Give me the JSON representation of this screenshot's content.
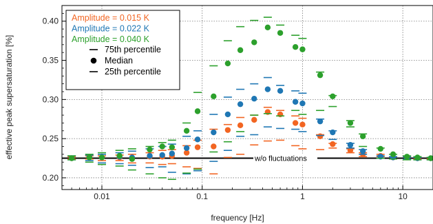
{
  "chart_data": {
    "type": "scatter",
    "xlabel": "frequency [Hz]",
    "ylabel": "effective peak supersaturation [%]",
    "x_scale": "log",
    "xlim": [
      0.004,
      20
    ],
    "ylim": [
      0.185,
      0.42
    ],
    "x_ticks": [
      {
        "value": 0.01,
        "label": "0.01"
      },
      {
        "value": 0.1,
        "label": "0.1"
      },
      {
        "value": 1,
        "label": "1"
      },
      {
        "value": 10,
        "label": "10"
      }
    ],
    "y_ticks": [
      {
        "value": 0.2,
        "label": "0.20"
      },
      {
        "value": 0.25,
        "label": "0.25"
      },
      {
        "value": 0.3,
        "label": "0.30"
      },
      {
        "value": 0.35,
        "label": "0.35"
      },
      {
        "value": 0.4,
        "label": "0.40"
      }
    ],
    "grid": true,
    "legend_position": "top-left",
    "reference_line": {
      "label": "w/o fluctuations",
      "y": 0.225,
      "color": "#000000"
    },
    "legend": {
      "series_labels": [
        "Amplitude = 0.015 K",
        "Amplitude = 0.022 K",
        "Amplitude = 0.040 K"
      ],
      "marker_labels": [
        "75th percentile",
        "Median",
        "25th percentile"
      ]
    },
    "series": [
      {
        "name": "Amplitude = 0.015 K",
        "color": "#f26522",
        "x": [
          0.005,
          0.0075,
          0.01,
          0.015,
          0.02,
          0.03,
          0.04,
          0.05,
          0.07,
          0.09,
          0.13,
          0.18,
          0.24,
          0.33,
          0.45,
          0.6,
          0.85,
          1.0,
          1.5,
          2.0,
          3.0,
          4.0,
          6.0,
          8.0,
          11.0,
          14.0,
          19.0
        ],
        "median": [
          0.225,
          0.226,
          0.226,
          0.226,
          0.225,
          0.227,
          0.227,
          0.228,
          0.232,
          0.239,
          0.24,
          0.261,
          0.267,
          0.274,
          0.284,
          0.281,
          0.27,
          0.268,
          0.253,
          0.243,
          0.235,
          0.23,
          0.228,
          0.226,
          0.226,
          0.225,
          0.225
        ],
        "p75": [
          0.227,
          0.228,
          0.228,
          0.229,
          0.23,
          0.232,
          0.235,
          0.236,
          0.241,
          0.248,
          0.262,
          0.268,
          0.277,
          0.28,
          0.29,
          0.286,
          0.279,
          0.276,
          0.255,
          0.244,
          0.237,
          0.232,
          0.23,
          0.227,
          0.227,
          0.226,
          0.226
        ],
        "p25": [
          0.224,
          0.224,
          0.222,
          0.222,
          0.219,
          0.219,
          0.217,
          0.218,
          0.214,
          0.212,
          0.205,
          0.226,
          0.23,
          0.242,
          0.247,
          0.248,
          0.241,
          0.237,
          0.236,
          0.238,
          0.232,
          0.227,
          0.227,
          0.224,
          0.224,
          0.224,
          0.224
        ]
      },
      {
        "name": "Amplitude = 0.022 K",
        "color": "#1f77b4",
        "x": [
          0.005,
          0.0075,
          0.01,
          0.015,
          0.02,
          0.03,
          0.04,
          0.05,
          0.07,
          0.09,
          0.13,
          0.18,
          0.24,
          0.33,
          0.45,
          0.6,
          0.85,
          1.0,
          1.5,
          2.0,
          3.0,
          4.0,
          6.0,
          8.0,
          11.0,
          14.0,
          19.0
        ],
        "median": [
          0.225,
          0.226,
          0.226,
          0.227,
          0.226,
          0.228,
          0.229,
          0.231,
          0.238,
          0.249,
          0.258,
          0.281,
          0.294,
          0.301,
          0.313,
          0.311,
          0.297,
          0.295,
          0.272,
          0.258,
          0.242,
          0.234,
          0.227,
          0.226,
          0.226,
          0.225,
          0.225
        ],
        "p75": [
          0.228,
          0.229,
          0.23,
          0.232,
          0.234,
          0.237,
          0.24,
          0.243,
          0.253,
          0.26,
          0.281,
          0.303,
          0.313,
          0.32,
          0.328,
          0.318,
          0.311,
          0.308,
          0.275,
          0.26,
          0.244,
          0.236,
          0.228,
          0.227,
          0.227,
          0.226,
          0.226
        ],
        "p25": [
          0.223,
          0.222,
          0.219,
          0.218,
          0.216,
          0.213,
          0.214,
          0.207,
          0.205,
          0.209,
          0.221,
          0.235,
          0.253,
          0.255,
          0.265,
          0.263,
          0.262,
          0.259,
          0.254,
          0.249,
          0.238,
          0.23,
          0.225,
          0.224,
          0.224,
          0.223,
          0.223
        ]
      },
      {
        "name": "Amplitude = 0.040 K",
        "color": "#2ca02c",
        "x": [
          0.005,
          0.0075,
          0.01,
          0.015,
          0.02,
          0.03,
          0.04,
          0.05,
          0.07,
          0.09,
          0.13,
          0.18,
          0.24,
          0.33,
          0.45,
          0.6,
          0.85,
          1.0,
          1.5,
          2.0,
          3.0,
          4.0,
          6.0,
          8.0,
          11.0,
          14.0,
          19.0
        ],
        "median": [
          0.225,
          0.226,
          0.226,
          0.228,
          0.224,
          0.236,
          0.24,
          0.239,
          0.26,
          0.285,
          0.304,
          0.346,
          0.363,
          0.373,
          0.392,
          0.385,
          0.367,
          0.364,
          0.331,
          0.304,
          0.27,
          0.253,
          0.237,
          0.23,
          0.227,
          0.226,
          0.225
        ],
        "p75": [
          0.228,
          0.23,
          0.232,
          0.235,
          0.237,
          0.24,
          0.245,
          0.248,
          0.27,
          0.309,
          0.343,
          0.375,
          0.393,
          0.401,
          0.405,
          0.395,
          0.382,
          0.378,
          0.335,
          0.305,
          0.273,
          0.256,
          0.238,
          0.23,
          0.228,
          0.227,
          0.226
        ],
        "p25": [
          0.223,
          0.22,
          0.217,
          0.215,
          0.21,
          0.205,
          0.2,
          0.198,
          0.206,
          0.211,
          0.233,
          0.246,
          0.259,
          0.28,
          0.282,
          0.279,
          0.286,
          0.281,
          0.286,
          0.291,
          0.265,
          0.24,
          0.225,
          0.224,
          0.223,
          0.223,
          0.223
        ]
      }
    ]
  }
}
